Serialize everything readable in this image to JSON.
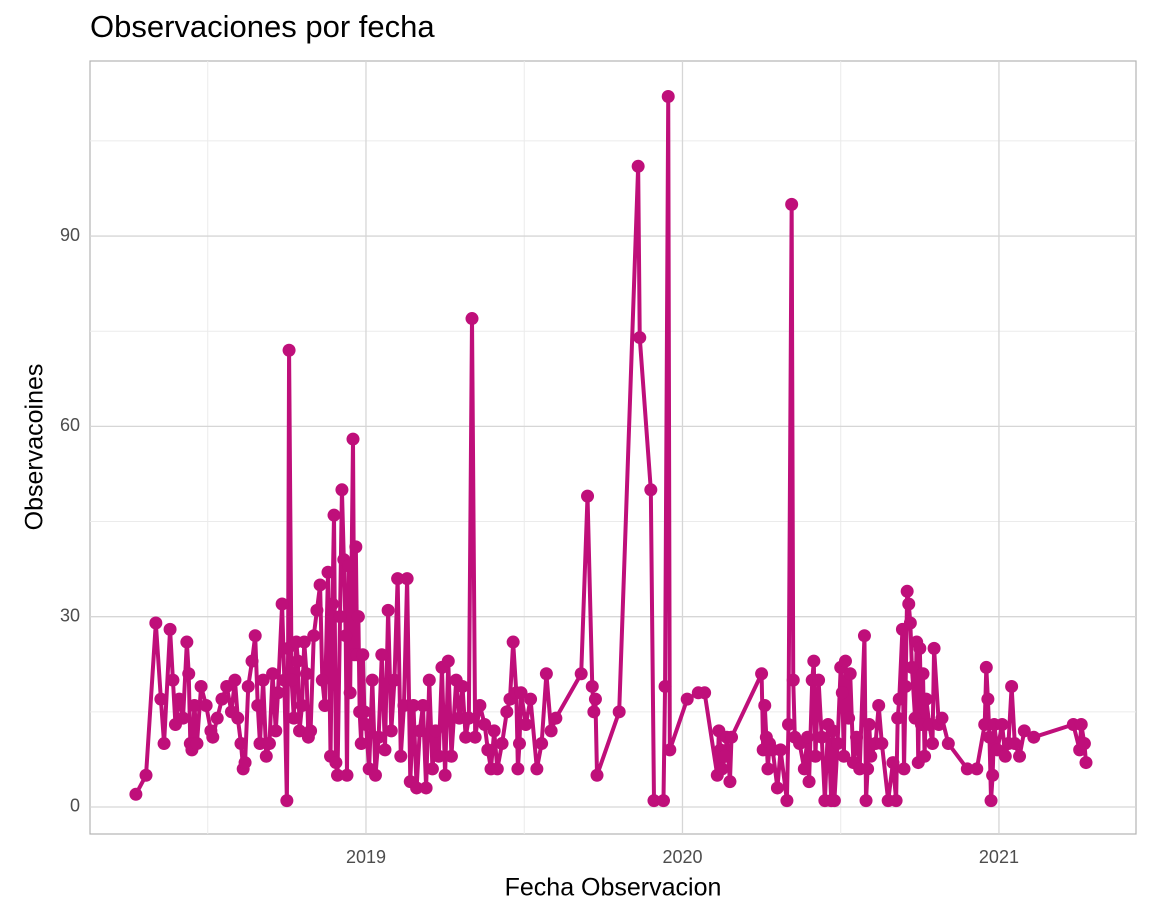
{
  "chart_data": {
    "type": "line",
    "title": "Observaciones por fecha",
    "x_label": "Fecha Observacion",
    "y_label": "Observacoines",
    "color": "#bf0f7a",
    "grid": true,
    "xlim": [
      2018.128,
      2021.433
    ],
    "xticks": [
      2019,
      2020,
      2021
    ],
    "ylim": [
      -4.26,
      117.6
    ],
    "yticks": [
      0,
      30,
      60,
      90
    ],
    "x": [
      2018.273,
      2018.305,
      2018.336,
      2018.352,
      2018.362,
      2018.381,
      2018.39,
      2018.398,
      2018.41,
      2018.422,
      2018.434,
      2018.44,
      2018.445,
      2018.45,
      2018.458,
      2018.466,
      2018.479,
      2018.495,
      2018.51,
      2018.516,
      2018.53,
      2018.545,
      2018.56,
      2018.575,
      2018.586,
      2018.595,
      2018.605,
      2018.612,
      2018.618,
      2018.628,
      2018.64,
      2018.65,
      2018.658,
      2018.665,
      2018.675,
      2018.685,
      2018.695,
      2018.705,
      2018.715,
      2018.722,
      2018.735,
      2018.742,
      2018.75,
      2018.754,
      2018.757,
      2018.765,
      2018.772,
      2018.78,
      2018.785,
      2018.79,
      2018.798,
      2018.805,
      2018.812,
      2018.818,
      2018.825,
      2018.835,
      2018.845,
      2018.855,
      2018.862,
      2018.87,
      2018.88,
      2018.888,
      2018.894,
      2018.899,
      2018.905,
      2018.91,
      2018.918,
      2018.924,
      2018.93,
      2018.936,
      2018.94,
      2018.945,
      2018.95,
      2018.959,
      2018.963,
      2018.968,
      2018.972,
      2018.976,
      2018.98,
      2018.985,
      2018.99,
      2018.995,
      2019.0,
      2019.01,
      2019.02,
      2019.03,
      2019.04,
      2019.05,
      2019.06,
      2019.07,
      2019.08,
      2019.09,
      2019.1,
      2019.11,
      2019.12,
      2019.13,
      2019.14,
      2019.15,
      2019.16,
      2019.17,
      2019.18,
      2019.19,
      2019.2,
      2019.21,
      2019.22,
      2019.23,
      2019.24,
      2019.25,
      2019.26,
      2019.27,
      2019.285,
      2019.295,
      2019.305,
      2019.315,
      2019.325,
      2019.335,
      2019.345,
      2019.36,
      2019.375,
      2019.385,
      2019.395,
      2019.405,
      2019.415,
      2019.43,
      2019.445,
      2019.455,
      2019.465,
      2019.475,
      2019.48,
      2019.485,
      2019.49,
      2019.505,
      2019.52,
      2019.54,
      2019.555,
      2019.57,
      2019.585,
      2019.6,
      2019.68,
      2019.7,
      2019.715,
      2019.72,
      2019.725,
      2019.73,
      2019.8,
      2019.86,
      2019.865,
      2019.9,
      2019.91,
      2019.94,
      2019.945,
      2019.955,
      2019.96,
      2020.015,
      2020.05,
      2020.07,
      2020.11,
      2020.115,
      2020.12,
      2020.125,
      2020.135,
      2020.14,
      2020.15,
      2020.155,
      2020.25,
      2020.255,
      2020.26,
      2020.265,
      2020.27,
      2020.275,
      2020.285,
      2020.3,
      2020.31,
      2020.33,
      2020.335,
      2020.345,
      2020.35,
      2020.355,
      2020.37,
      2020.385,
      2020.395,
      2020.4,
      2020.41,
      2020.415,
      2020.42,
      2020.43,
      2020.44,
      2020.45,
      2020.46,
      2020.47,
      2020.475,
      2020.48,
      2020.49,
      2020.5,
      2020.505,
      2020.51,
      2020.515,
      2020.525,
      2020.53,
      2020.54,
      2020.55,
      2020.56,
      2020.575,
      2020.58,
      2020.585,
      2020.59,
      2020.595,
      2020.61,
      2020.62,
      2020.63,
      2020.65,
      2020.665,
      2020.675,
      2020.68,
      2020.685,
      2020.695,
      2020.7,
      2020.705,
      2020.71,
      2020.715,
      2020.72,
      2020.725,
      2020.735,
      2020.74,
      2020.745,
      2020.75,
      2020.755,
      2020.76,
      2020.765,
      2020.77,
      2020.78,
      2020.79,
      2020.795,
      2020.81,
      2020.82,
      2020.84,
      2020.9,
      2020.93,
      2020.955,
      2020.96,
      2020.965,
      2020.97,
      2020.975,
      2020.98,
      2020.985,
      2020.995,
      2021.01,
      2021.02,
      2021.03,
      2021.04,
      2021.05,
      2021.065,
      2021.08,
      2021.11,
      2021.235,
      2021.255,
      2021.26,
      2021.27,
      2021.275
    ],
    "values": [
      2,
      5,
      29,
      17,
      10,
      28,
      20,
      13,
      17,
      14,
      26,
      21,
      10,
      9,
      16,
      10,
      19,
      16,
      12,
      11,
      14,
      17,
      19,
      15,
      20,
      14,
      10,
      6,
      7,
      19,
      23,
      27,
      16,
      10,
      20,
      8,
      10,
      21,
      12,
      18,
      32,
      20,
      1,
      25,
      72,
      20,
      14,
      26,
      23,
      12,
      16,
      26,
      21,
      11,
      12,
      27,
      31,
      35,
      20,
      16,
      37,
      8,
      32,
      46,
      7,
      5,
      30,
      50,
      39,
      27,
      5,
      38,
      18,
      58,
      24,
      41,
      24,
      30,
      15,
      10,
      24,
      15,
      13,
      6,
      20,
      5,
      11,
      24,
      9,
      31,
      12,
      20,
      36,
      8,
      16,
      36,
      4,
      16,
      3,
      12,
      16,
      3,
      20,
      6,
      12,
      8,
      22,
      5,
      23,
      8,
      20,
      14,
      19,
      11,
      14,
      77,
      11,
      16,
      13,
      9,
      6,
      12,
      6,
      10,
      15,
      17,
      26,
      18,
      6,
      10,
      18,
      13,
      17,
      6,
      10,
      21,
      12,
      14,
      21,
      49,
      19,
      15,
      17,
      5,
      15,
      101,
      74,
      50,
      1,
      1,
      19,
      112,
      9,
      17,
      18,
      18,
      5,
      12,
      9,
      6,
      8,
      11,
      4,
      11,
      21,
      9,
      16,
      11,
      6,
      10,
      9,
      3,
      9,
      1,
      13,
      95,
      20,
      11,
      10,
      6,
      11,
      4,
      20,
      23,
      8,
      20,
      11,
      1,
      13,
      1,
      12,
      1,
      10,
      22,
      18,
      8,
      23,
      14,
      21,
      7,
      11,
      6,
      27,
      1,
      6,
      13,
      8,
      10,
      16,
      10,
      1,
      7,
      1,
      14,
      17,
      28,
      6,
      19,
      34,
      32,
      29,
      22,
      14,
      26,
      7,
      25,
      13,
      21,
      8,
      17,
      13,
      10,
      25,
      13,
      14,
      10,
      6,
      6,
      13,
      22,
      17,
      11,
      1,
      5,
      13,
      9,
      13,
      8,
      10,
      19,
      10,
      8,
      12,
      11,
      13,
      9,
      13,
      10,
      7
    ]
  }
}
